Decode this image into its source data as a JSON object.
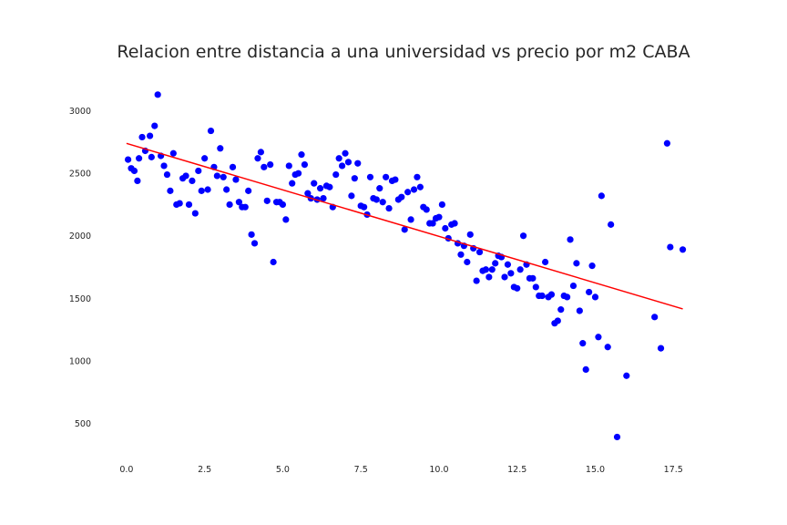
{
  "chart_data": {
    "type": "scatter",
    "title": "Relacion entre distancia a una universidad vs precio por m2 CABA",
    "xlabel": "",
    "ylabel": "",
    "xlim": [
      -0.9,
      18.6
    ],
    "ylim": [
      240,
      3260
    ],
    "x_ticks": [
      0.0,
      2.5,
      5.0,
      7.5,
      10.0,
      12.5,
      15.0,
      17.5
    ],
    "x_tick_labels": [
      "0.0",
      "2.5",
      "5.0",
      "7.5",
      "10.0",
      "12.5",
      "15.0",
      "17.5"
    ],
    "y_ticks": [
      500,
      1000,
      1500,
      2000,
      2500,
      3000
    ],
    "y_tick_labels": [
      "500",
      "1000",
      "1500",
      "2000",
      "2500",
      "3000"
    ],
    "grid": false,
    "point_color": "#0000ff",
    "line_color": "#ff0000",
    "series": [
      {
        "type": "scatter",
        "x": [
          0.05,
          0.15,
          0.25,
          0.35,
          0.4,
          0.5,
          0.6,
          0.75,
          0.8,
          0.9,
          1.0,
          1.1,
          1.2,
          1.3,
          1.4,
          1.5,
          1.6,
          1.7,
          1.8,
          1.9,
          2.0,
          2.1,
          2.2,
          2.3,
          2.4,
          2.5,
          2.6,
          2.7,
          2.8,
          2.9,
          3.0,
          3.1,
          3.2,
          3.3,
          3.4,
          3.5,
          3.6,
          3.7,
          3.8,
          3.9,
          4.0,
          4.1,
          4.2,
          4.3,
          4.4,
          4.5,
          4.6,
          4.7,
          4.8,
          4.9,
          5.0,
          5.1,
          5.2,
          5.3,
          5.4,
          5.5,
          5.6,
          5.7,
          5.8,
          5.9,
          6.0,
          6.1,
          6.2,
          6.3,
          6.4,
          6.5,
          6.6,
          6.7,
          6.8,
          6.9,
          7.0,
          7.1,
          7.2,
          7.3,
          7.4,
          7.5,
          7.6,
          7.7,
          7.8,
          7.9,
          8.0,
          8.1,
          8.2,
          8.3,
          8.4,
          8.5,
          8.6,
          8.7,
          8.8,
          8.9,
          9.0,
          9.1,
          9.2,
          9.3,
          9.4,
          9.5,
          9.6,
          9.7,
          9.8,
          9.9,
          10.0,
          10.1,
          10.2,
          10.3,
          10.4,
          10.5,
          10.6,
          10.7,
          10.8,
          10.9,
          11.0,
          11.1,
          11.2,
          11.3,
          11.4,
          11.5,
          11.6,
          11.7,
          11.8,
          11.9,
          12.0,
          12.1,
          12.2,
          12.3,
          12.4,
          12.5,
          12.6,
          12.7,
          12.8,
          12.9,
          13.0,
          13.1,
          13.2,
          13.3,
          13.4,
          13.5,
          13.6,
          13.7,
          13.8,
          13.9,
          14.0,
          14.1,
          14.2,
          14.3,
          14.4,
          14.5,
          14.6,
          14.7,
          14.8,
          14.9,
          15.0,
          15.1,
          15.2,
          15.4,
          15.5,
          15.7,
          16.0,
          16.9,
          17.1,
          17.3,
          17.4,
          17.8
        ],
        "y": [
          2610,
          2540,
          2520,
          2440,
          2620,
          2790,
          2680,
          2800,
          2630,
          2880,
          3130,
          2640,
          2560,
          2490,
          2360,
          2660,
          2250,
          2260,
          2460,
          2480,
          2250,
          2440,
          2180,
          2520,
          2360,
          2620,
          2370,
          2840,
          2550,
          2480,
          2700,
          2470,
          2370,
          2250,
          2550,
          2450,
          2270,
          2230,
          2230,
          2360,
          2010,
          1940,
          2620,
          2670,
          2550,
          2280,
          2570,
          1790,
          2270,
          2270,
          2250,
          2130,
          2560,
          2420,
          2490,
          2500,
          2650,
          2570,
          2340,
          2300,
          2420,
          2290,
          2380,
          2300,
          2400,
          2390,
          2230,
          2490,
          2620,
          2560,
          2660,
          2590,
          2320,
          2460,
          2580,
          2240,
          2230,
          2170,
          2470,
          2300,
          2290,
          2380,
          2270,
          2470,
          2220,
          2440,
          2450,
          2290,
          2310,
          2050,
          2350,
          2130,
          2370,
          2470,
          2390,
          2230,
          2210,
          2100,
          2100,
          2140,
          2150,
          2250,
          2060,
          1980,
          2090,
          2100,
          1940,
          1850,
          1920,
          1790,
          2010,
          1900,
          1640,
          1870,
          1720,
          1730,
          1670,
          1730,
          1780,
          1840,
          1830,
          1670,
          1770,
          1700,
          1590,
          1580,
          1730,
          2000,
          1770,
          1660,
          1660,
          1590,
          1520,
          1520,
          1790,
          1510,
          1530,
          1300,
          1320,
          1410,
          1520,
          1510,
          1970,
          1600,
          1780,
          1400,
          1140,
          930,
          1550,
          1760,
          1510,
          1190,
          2320,
          1110,
          2090,
          390,
          880,
          1350,
          1100,
          2740,
          1910,
          1890
        ]
      },
      {
        "type": "line",
        "x": [
          0.0,
          17.8
        ],
        "y": [
          2740,
          1415
        ]
      }
    ]
  }
}
